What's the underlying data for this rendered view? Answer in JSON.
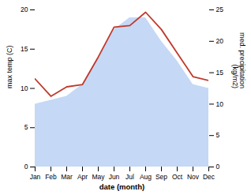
{
  "chart_data": {
    "type": "line",
    "xlabel": "date (month)",
    "ylabel": "max temp (C)",
    "y2label": "med. precipitation\n(kg/m2)",
    "categories": [
      "Jan",
      "Feb",
      "Mar",
      "Apr",
      "May",
      "Jun",
      "Jul",
      "Aug",
      "Sep",
      "Oct",
      "Nov",
      "Dec"
    ],
    "series": [
      {
        "type": "area",
        "color": "#c5d8f5",
        "values": [
          8.0,
          8.5,
          9.0,
          10.5,
          14.0,
          17.5,
          19.0,
          19.0,
          16.0,
          13.5,
          10.5,
          10.0
        ]
      },
      {
        "type": "line",
        "color": "#c0392b",
        "values": [
          11.2,
          9.0,
          10.2,
          10.5,
          14.0,
          17.8,
          18.0,
          19.7,
          17.5,
          14.5,
          11.5,
          11.0
        ]
      }
    ],
    "ylim": [
      0,
      20
    ],
    "yticks": [
      0,
      5,
      10,
      15,
      20
    ],
    "y2lim": [
      0,
      25
    ],
    "y2ticks": [
      0,
      5,
      10,
      15,
      20,
      25
    ]
  }
}
